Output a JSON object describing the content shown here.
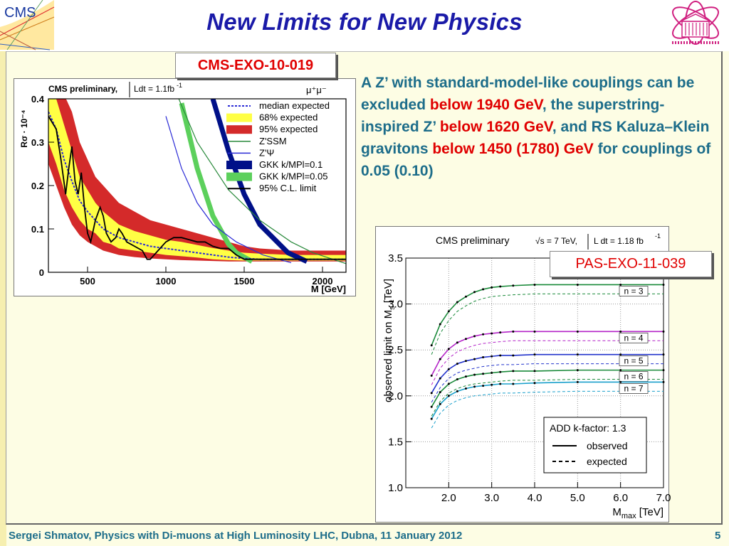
{
  "slide": {
    "title": "New Limits for New Physics",
    "logo_left_text": "CMS",
    "ref_left": "CMS-EXO-10-019",
    "ref_right": "PAS-EXO-11-039",
    "text": {
      "p1": "A Z’ with standard-model-like couplings can be excluded ",
      "hl1": "below 1940 GeV",
      "p2": ", the superstring-inspired Z’ ",
      "hl2": "below 1620 GeV",
      "p3": ", and RS Kaluza–Klein gravitons ",
      "hl3": "below 1450 (1780) GeV",
      "p4": " for couplings of 0.05 (0.10)"
    },
    "footer": "Sergei Shmatov, Physics with Di-muons at High Luminosity LHC, Dubna, 11 January 2012",
    "page_number": "5"
  },
  "colors": {
    "title": "#1a1aa8",
    "text": "#1d6d8a",
    "highlight": "#e00000",
    "band68": "#ffff44",
    "band95": "#d42a2a",
    "zssm": "#2a8a3c",
    "zpsi": "#2b2bd6",
    "gkk01": "#001088",
    "gkk005": "#5cd05c"
  },
  "chart_data": [
    {
      "type": "line",
      "header_left": "CMS preliminary,",
      "header_lumi": "Ldt = 1.1fb",
      "header_lumi_sup": "-1",
      "channel": "μ⁺μ⁻",
      "ylabel": "Rσ · 10⁻⁴",
      "xlabel": "M [GeV]",
      "xlim": [
        250,
        2150
      ],
      "ylim": [
        0,
        0.4
      ],
      "xticks": [
        500,
        1000,
        1500,
        2000
      ],
      "xtick_labels": [
        "500",
        "1000",
        "1500",
        "2000"
      ],
      "yticks": [
        0,
        0.1,
        0.2,
        0.3,
        0.4
      ],
      "ytick_labels": [
        "0",
        "0.1",
        "0.2",
        "0.3",
        "0.4"
      ],
      "legend": [
        {
          "label": "median expected",
          "style": "dotted",
          "color": "#2b2bd6"
        },
        {
          "label": "68% expected",
          "style": "band",
          "color": "#ffff44"
        },
        {
          "label": "95% expected",
          "style": "band",
          "color": "#d42a2a"
        },
        {
          "label": "Z'SSM",
          "style": "line",
          "color": "#2a8a3c"
        },
        {
          "label": "Z'Ψ",
          "style": "line",
          "color": "#2b2bd6"
        },
        {
          "label": "GKK k/MPl=0.1",
          "style": "thick",
          "color": "#001088"
        },
        {
          "label": "GKK k/MPl=0.05",
          "style": "thick",
          "color": "#5cd05c"
        },
        {
          "label": "95% C.L. limit",
          "style": "line",
          "color": "#000000"
        }
      ],
      "series": [
        {
          "name": "95% C.L. limit",
          "x": [
            250,
            300,
            330,
            360,
            380,
            400,
            420,
            440,
            460,
            480,
            500,
            520,
            550,
            580,
            600,
            620,
            650,
            680,
            700,
            720,
            750,
            800,
            850,
            880,
            900,
            950,
            1000,
            1050,
            1100,
            1150,
            1200,
            1250,
            1300,
            1350,
            1400,
            1450,
            1500,
            1600,
            1700,
            1800,
            2000,
            2150
          ],
          "y": [
            0.36,
            0.33,
            0.26,
            0.18,
            0.24,
            0.29,
            0.21,
            0.18,
            0.23,
            0.15,
            0.09,
            0.07,
            0.12,
            0.15,
            0.13,
            0.09,
            0.07,
            0.08,
            0.1,
            0.09,
            0.07,
            0.06,
            0.05,
            0.03,
            0.03,
            0.05,
            0.07,
            0.08,
            0.08,
            0.075,
            0.07,
            0.07,
            0.06,
            0.055,
            0.055,
            0.04,
            0.03,
            0.03,
            0.03,
            0.03,
            0.03,
            0.03
          ]
        },
        {
          "name": "median expected",
          "x": [
            250,
            300,
            350,
            400,
            450,
            500,
            550,
            600,
            650,
            700,
            800,
            900,
            1000,
            1100,
            1200,
            1300,
            1400,
            1500,
            1600,
            1800,
            2000,
            2150
          ],
          "y": [
            0.37,
            0.33,
            0.26,
            0.21,
            0.165,
            0.14,
            0.12,
            0.1,
            0.09,
            0.08,
            0.07,
            0.06,
            0.055,
            0.05,
            0.045,
            0.04,
            0.035,
            0.032,
            0.03,
            0.03,
            0.03,
            0.03
          ]
        },
        {
          "name": "68% expected",
          "x": [
            250,
            300,
            350,
            400,
            450,
            500,
            550,
            600,
            650,
            700,
            800,
            900,
            1000,
            1100,
            1200,
            1300,
            1400,
            1500,
            1600,
            1800,
            2000,
            2150
          ],
          "low": [
            0.3,
            0.25,
            0.19,
            0.15,
            0.12,
            0.1,
            0.09,
            0.07,
            0.065,
            0.055,
            0.05,
            0.045,
            0.04,
            0.037,
            0.034,
            0.03,
            0.028,
            0.027,
            0.027,
            0.027,
            0.027,
            0.027
          ],
          "high": [
            0.41,
            0.4,
            0.34,
            0.28,
            0.22,
            0.19,
            0.16,
            0.14,
            0.125,
            0.11,
            0.095,
            0.085,
            0.075,
            0.07,
            0.063,
            0.056,
            0.05,
            0.045,
            0.043,
            0.04,
            0.04,
            0.04
          ]
        },
        {
          "name": "95% expected",
          "x": [
            250,
            300,
            350,
            400,
            450,
            500,
            550,
            600,
            650,
            700,
            800,
            900,
            1000,
            1100,
            1200,
            1300,
            1400,
            1500,
            1600,
            1800,
            2000,
            2150
          ],
          "low": [
            0.25,
            0.2,
            0.15,
            0.11,
            0.085,
            0.07,
            0.06,
            0.05,
            0.045,
            0.04,
            0.035,
            0.032,
            0.03,
            0.028,
            0.027,
            0.026,
            0.025,
            0.025,
            0.025,
            0.025,
            0.025,
            0.025
          ],
          "high": [
            0.42,
            0.42,
            0.41,
            0.37,
            0.3,
            0.26,
            0.22,
            0.2,
            0.18,
            0.16,
            0.14,
            0.12,
            0.11,
            0.1,
            0.09,
            0.08,
            0.07,
            0.06,
            0.055,
            0.05,
            0.05,
            0.05
          ]
        },
        {
          "name": "Z'SSM",
          "x": [
            1000,
            1200,
            1400,
            1600,
            1800,
            1940,
            2150
          ],
          "y": [
            0.47,
            0.3,
            0.19,
            0.12,
            0.07,
            0.045,
            0.02
          ]
        },
        {
          "name": "Z'Ψ",
          "x": [
            1000,
            1100,
            1200,
            1300,
            1450,
            1620,
            1800
          ],
          "y": [
            0.36,
            0.24,
            0.16,
            0.11,
            0.07,
            0.04,
            0.022
          ]
        },
        {
          "name": "GKK k/MPl=0.1",
          "x": [
            1300,
            1400,
            1500,
            1600,
            1780,
            1900
          ],
          "y": [
            0.4,
            0.28,
            0.18,
            0.11,
            0.045,
            0.025
          ]
        },
        {
          "name": "GKK k/MPl=0.05",
          "x": [
            1100,
            1200,
            1300,
            1400,
            1450,
            1550
          ],
          "y": [
            0.39,
            0.24,
            0.13,
            0.065,
            0.045,
            0.025
          ]
        }
      ]
    },
    {
      "type": "line",
      "header": "CMS preliminary",
      "header_energy": "√s = 7 TeV,",
      "header_lumi": "L dt = 1.18 fb",
      "header_lumi_sup": "-1",
      "ylabel": "observed limit on M",
      "ylabel_sub": "s",
      "ylabel_unit": " [TeV]",
      "xlabel": "M",
      "xlabel_sub": "max",
      "xlabel_unit": " [TeV]",
      "xlim": [
        1.4,
        7.0
      ],
      "ylim": [
        1.0,
        3.5
      ],
      "xticks": [
        2.0,
        3.0,
        4.0,
        5.0,
        6.0,
        7.0
      ],
      "xtick_labels": [
        "2.0",
        "3.0",
        "4.0",
        "5.0",
        "6.0",
        "7.0"
      ],
      "yticks": [
        1.0,
        1.5,
        2.0,
        2.5,
        3.0,
        3.5
      ],
      "ytick_labels": [
        "1.0",
        "1.5",
        "2.0",
        "2.5",
        "3.0",
        "3.5"
      ],
      "legend_title": "ADD k-factor: 1.3",
      "legend": [
        "observed",
        "expected"
      ],
      "x": [
        1.6,
        1.8,
        2.0,
        2.2,
        2.4,
        2.6,
        2.8,
        3.0,
        3.2,
        3.5,
        4.0,
        5.0,
        6.0,
        7.0
      ],
      "series": [
        {
          "name": "n = 3",
          "color": "#1a8a3a",
          "observed": [
            2.55,
            2.78,
            2.92,
            3.02,
            3.08,
            3.13,
            3.16,
            3.18,
            3.19,
            3.2,
            3.21,
            3.21,
            3.21,
            3.21
          ],
          "expected": [
            2.45,
            2.68,
            2.82,
            2.92,
            2.98,
            3.03,
            3.06,
            3.08,
            3.09,
            3.1,
            3.11,
            3.11,
            3.11,
            3.11
          ]
        },
        {
          "name": "n = 4",
          "color": "#b424c8",
          "observed": [
            2.22,
            2.4,
            2.51,
            2.58,
            2.62,
            2.65,
            2.67,
            2.68,
            2.69,
            2.7,
            2.7,
            2.7,
            2.7,
            2.7
          ],
          "expected": [
            2.12,
            2.3,
            2.41,
            2.48,
            2.52,
            2.55,
            2.57,
            2.58,
            2.59,
            2.6,
            2.6,
            2.6,
            2.6,
            2.6
          ]
        },
        {
          "name": "n = 5",
          "color": "#2233cc",
          "observed": [
            2.03,
            2.19,
            2.29,
            2.35,
            2.38,
            2.4,
            2.42,
            2.43,
            2.44,
            2.44,
            2.45,
            2.45,
            2.45,
            2.45
          ],
          "expected": [
            1.93,
            2.09,
            2.19,
            2.25,
            2.28,
            2.3,
            2.32,
            2.33,
            2.34,
            2.34,
            2.35,
            2.35,
            2.35,
            2.35
          ]
        },
        {
          "name": "n = 6",
          "color": "#1a8a3a",
          "observed": [
            1.88,
            2.04,
            2.13,
            2.18,
            2.21,
            2.23,
            2.24,
            2.25,
            2.26,
            2.27,
            2.27,
            2.28,
            2.28,
            2.28
          ],
          "expected": [
            1.78,
            1.94,
            2.03,
            2.08,
            2.11,
            2.13,
            2.14,
            2.15,
            2.16,
            2.17,
            2.17,
            2.18,
            2.18,
            2.18
          ]
        },
        {
          "name": "n = 7",
          "color": "#1aa0cc",
          "observed": [
            1.75,
            1.91,
            2.0,
            2.05,
            2.08,
            2.1,
            2.11,
            2.12,
            2.13,
            2.13,
            2.14,
            2.15,
            2.15,
            2.15
          ],
          "expected": [
            1.65,
            1.81,
            1.9,
            1.95,
            1.98,
            2.0,
            2.01,
            2.02,
            2.03,
            2.03,
            2.04,
            2.05,
            2.05,
            2.05
          ]
        }
      ]
    }
  ]
}
